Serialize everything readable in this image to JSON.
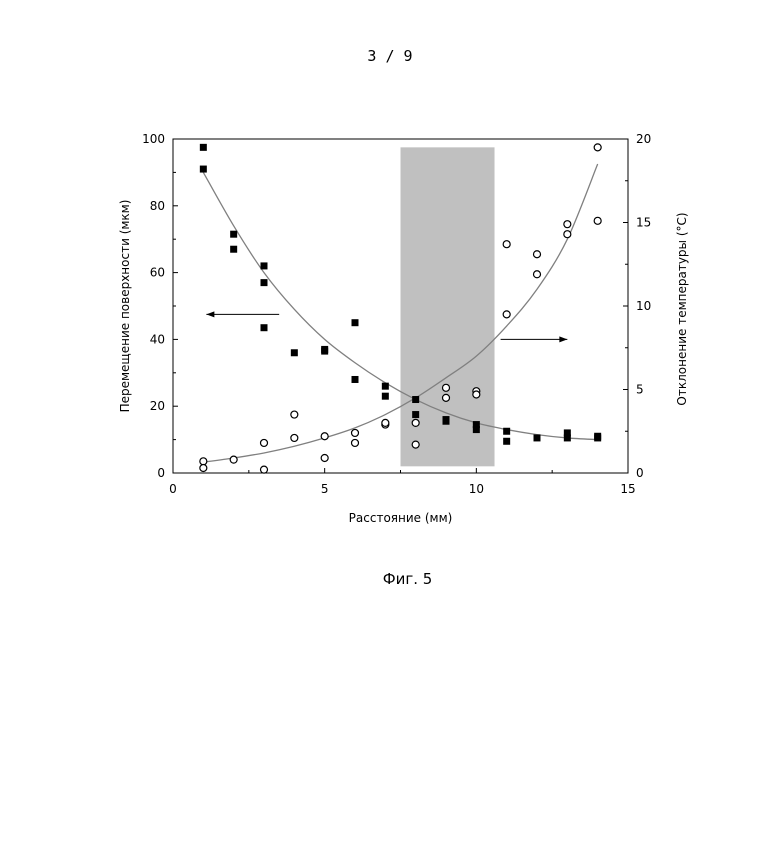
{
  "page": {
    "number": "3 / 9",
    "caption": "Фиг. 5"
  },
  "chart_data": {
    "type": "scatter",
    "title": "",
    "xlabel": "Расстояние (мм)",
    "ylabel": "Перемещение поверхности (мкм)",
    "y2label": "Отклонение температуры (°C)",
    "xlim": [
      0,
      15
    ],
    "ylim": [
      0,
      100
    ],
    "y2lim": [
      0,
      20
    ],
    "xticks": [
      0,
      5,
      10,
      15
    ],
    "yticks": [
      0,
      20,
      40,
      60,
      80,
      100
    ],
    "y2ticks": [
      0,
      5,
      10,
      15,
      20
    ],
    "grid": false,
    "shaded_region": {
      "x": [
        7.5,
        10.6
      ],
      "y": [
        2,
        97.5
      ],
      "color": "#c0c0c0"
    },
    "series": [
      {
        "axis": "left",
        "marker": "filled-square",
        "points": [
          [
            1,
            97.5
          ],
          [
            1,
            91
          ],
          [
            2,
            71.5
          ],
          [
            2,
            67
          ],
          [
            3,
            62
          ],
          [
            3,
            57
          ],
          [
            3,
            43.5
          ],
          [
            4,
            36
          ],
          [
            5,
            37
          ],
          [
            5,
            36.5
          ],
          [
            6,
            45
          ],
          [
            6,
            28
          ],
          [
            7,
            26
          ],
          [
            7,
            23
          ],
          [
            8,
            22
          ],
          [
            8,
            17.5
          ],
          [
            9,
            16
          ],
          [
            9,
            15.5
          ],
          [
            10,
            14.5
          ],
          [
            10,
            13
          ],
          [
            11,
            12.5
          ],
          [
            11,
            9.5
          ],
          [
            12,
            10.5
          ],
          [
            13,
            12
          ],
          [
            13,
            10.5
          ],
          [
            14,
            11
          ],
          [
            14,
            10.5
          ]
        ]
      },
      {
        "axis": "right",
        "marker": "open-circle",
        "points": [
          [
            1,
            0.7
          ],
          [
            1,
            0.3
          ],
          [
            2,
            0.8
          ],
          [
            3,
            1.8
          ],
          [
            3,
            0.2
          ],
          [
            4,
            3.5
          ],
          [
            4,
            2.1
          ],
          [
            5,
            2.2
          ],
          [
            5,
            0.9
          ],
          [
            6,
            2.4
          ],
          [
            6,
            1.8
          ],
          [
            7,
            2.9
          ],
          [
            7,
            3
          ],
          [
            8,
            3
          ],
          [
            8,
            1.7
          ],
          [
            9,
            5.1
          ],
          [
            9,
            4.5
          ],
          [
            10,
            4.9
          ],
          [
            10,
            4.7
          ],
          [
            11,
            13.7
          ],
          [
            11,
            9.5
          ],
          [
            12,
            13.1
          ],
          [
            12,
            11.9
          ],
          [
            13,
            14.9
          ],
          [
            13,
            14.3
          ],
          [
            14,
            19.5
          ],
          [
            14,
            15.1
          ]
        ]
      },
      {
        "axis": "left",
        "type": "line",
        "color": "#808080",
        "points": [
          [
            1,
            90
          ],
          [
            2,
            74
          ],
          [
            3,
            60
          ],
          [
            4,
            49
          ],
          [
            5,
            40
          ],
          [
            6,
            33
          ],
          [
            7,
            27
          ],
          [
            8,
            22
          ],
          [
            9,
            18
          ],
          [
            10,
            15
          ],
          [
            11,
            13
          ],
          [
            12,
            11.5
          ],
          [
            13,
            10.5
          ],
          [
            14,
            10
          ]
        ]
      },
      {
        "axis": "right",
        "type": "line",
        "color": "#808080",
        "points": [
          [
            1,
            0.65
          ],
          [
            2,
            0.9
          ],
          [
            3,
            1.2
          ],
          [
            4,
            1.6
          ],
          [
            5,
            2.1
          ],
          [
            6,
            2.7
          ],
          [
            7,
            3.5
          ],
          [
            8,
            4.5
          ],
          [
            9,
            5.7
          ],
          [
            10,
            7
          ],
          [
            11,
            8.8
          ],
          [
            12,
            11
          ],
          [
            13,
            14
          ],
          [
            14,
            18.5
          ]
        ]
      }
    ],
    "annotations": [
      {
        "type": "arrow",
        "direction": "left",
        "from": [
          3.5,
          47.5
        ],
        "to": [
          1.1,
          47.5
        ]
      },
      {
        "type": "arrow",
        "direction": "right",
        "from": [
          10.8,
          40
        ],
        "to": [
          13,
          40
        ]
      }
    ]
  }
}
